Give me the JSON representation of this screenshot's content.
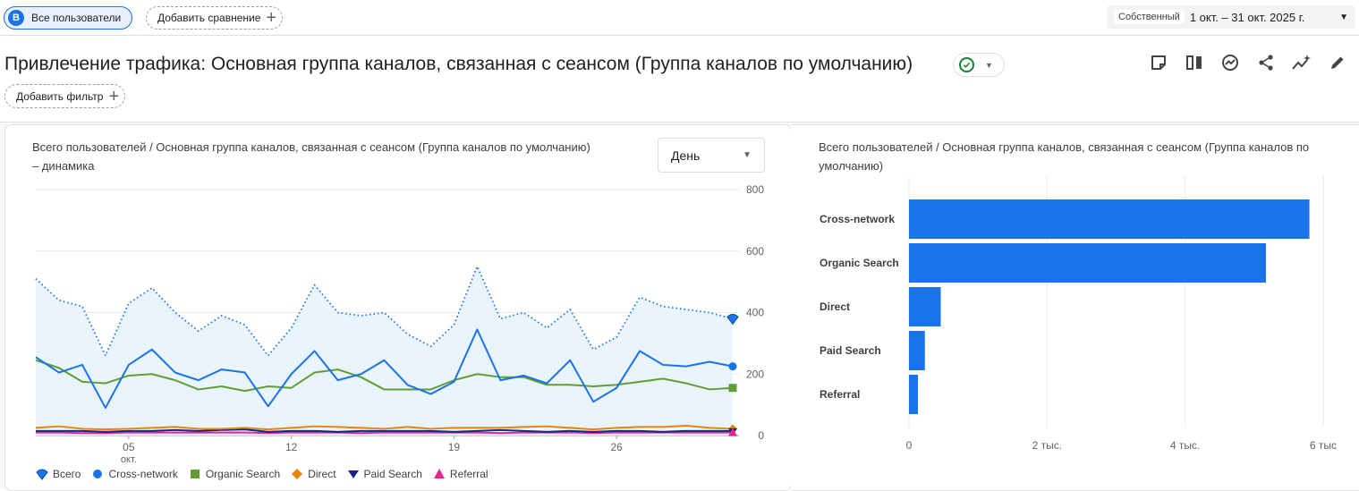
{
  "topbar": {
    "segment_avatar": "B",
    "segment_label": "Все пользователи",
    "add_comparison_label": "Добавить сравнение",
    "date_tag": "Собственный",
    "date_range": "1 окт. – 31 окт. 2025 г."
  },
  "header": {
    "title": "Привлечение трафика: Основная группа каналов, связанная с сеансом (Группа каналов по умолчанию)",
    "add_filter_label": "Добавить фильтр"
  },
  "line_card": {
    "title": "Всего пользователей / Основная группа каналов, связанная с сеансом (Группа каналов по умолчанию) – динамика",
    "granularity": "День"
  },
  "bar_card": {
    "title": "Всего пользователей / Основная группа каналов, связанная с сеансом (Группа каналов по умолчанию)"
  },
  "colors": {
    "total": "#1a73e8",
    "cross_network": "#1a73e8",
    "organic": "#5f9e33",
    "direct": "#e8830c",
    "paid": "#1a237e",
    "referral": "#e52592",
    "bar": "#1a73e8"
  },
  "chart_data": [
    {
      "type": "line",
      "x": [
        "01",
        "02",
        "03",
        "04",
        "05",
        "06",
        "07",
        "08",
        "09",
        "10",
        "11",
        "12",
        "13",
        "14",
        "15",
        "16",
        "17",
        "18",
        "19",
        "20",
        "21",
        "22",
        "23",
        "24",
        "25",
        "26",
        "27",
        "28",
        "29",
        "30",
        "31"
      ],
      "x_ticks": [
        "05",
        "12",
        "19",
        "26"
      ],
      "x_tick_sub": "окт.",
      "y_ticks": [
        "0",
        "200",
        "400",
        "600",
        "800"
      ],
      "ylim": [
        0,
        800
      ],
      "series": [
        {
          "name": "Всего",
          "values": [
            510,
            440,
            420,
            260,
            430,
            480,
            400,
            340,
            390,
            360,
            260,
            350,
            490,
            400,
            390,
            400,
            330,
            290,
            360,
            550,
            380,
            400,
            350,
            410,
            280,
            320,
            450,
            420,
            410,
            400,
            380
          ]
        },
        {
          "name": "Cross-network",
          "values": [
            255,
            205,
            230,
            90,
            230,
            280,
            205,
            180,
            215,
            205,
            95,
            200,
            275,
            180,
            200,
            245,
            165,
            135,
            175,
            345,
            180,
            195,
            170,
            245,
            110,
            155,
            275,
            230,
            225,
            240,
            225
          ]
        },
        {
          "name": "Organic Search",
          "values": [
            245,
            220,
            175,
            170,
            195,
            200,
            180,
            150,
            160,
            145,
            160,
            155,
            205,
            215,
            190,
            150,
            150,
            150,
            180,
            200,
            190,
            190,
            165,
            165,
            160,
            165,
            175,
            185,
            170,
            150,
            155
          ]
        },
        {
          "name": "Direct",
          "values": [
            25,
            30,
            22,
            20,
            22,
            25,
            28,
            22,
            22,
            25,
            20,
            25,
            30,
            28,
            25,
            22,
            28,
            22,
            25,
            25,
            25,
            28,
            30,
            25,
            20,
            25,
            28,
            28,
            32,
            25,
            22
          ]
        },
        {
          "name": "Paid Search",
          "values": [
            15,
            15,
            15,
            12,
            15,
            15,
            18,
            15,
            18,
            20,
            12,
            15,
            15,
            12,
            15,
            15,
            15,
            15,
            12,
            15,
            18,
            15,
            12,
            15,
            12,
            15,
            15,
            12,
            15,
            15,
            15
          ]
        },
        {
          "name": "Referral",
          "values": [
            10,
            10,
            8,
            8,
            10,
            10,
            10,
            10,
            10,
            10,
            8,
            10,
            10,
            10,
            8,
            10,
            10,
            10,
            10,
            10,
            8,
            10,
            10,
            10,
            8,
            10,
            10,
            10,
            10,
            10,
            10
          ]
        }
      ]
    },
    {
      "type": "bar",
      "categories": [
        "Cross-network",
        "Organic Search",
        "Direct",
        "Paid Search",
        "Referral"
      ],
      "values": [
        5800,
        5170,
        460,
        230,
        130
      ],
      "x_ticks": [
        "0",
        "2 тыс.",
        "4 тыс.",
        "6 тыс"
      ],
      "xlim": [
        0,
        6000
      ]
    }
  ]
}
